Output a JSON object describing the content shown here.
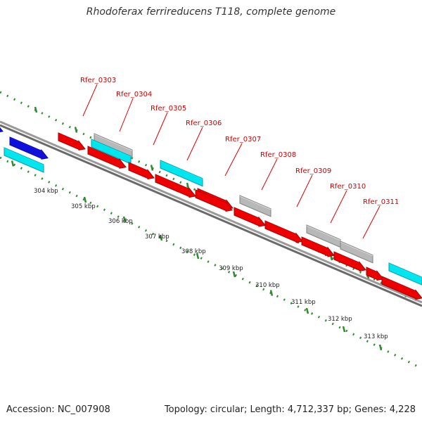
{
  "title": "Rhodoferax ferrireducens T118, complete genome",
  "footer": {
    "accession": "Accession: NC_007908",
    "topology": "Topology: circular; Length: 4,712,337 bp; Genes: 4,228"
  },
  "colors": {
    "cds": "#ee0000",
    "cyan": "#00e5ee",
    "gray": "#b8b8b8",
    "blue": "#1010dd",
    "backbone": "#888888",
    "tick": "#2f8b2f",
    "label_red": "#cc0000",
    "leader": "#dd0000"
  },
  "genes": [
    {
      "label": "Rfer_0303"
    },
    {
      "label": "Rfer_0304"
    },
    {
      "label": "Rfer_0305"
    },
    {
      "label": "Rfer_0306"
    },
    {
      "label": "Rfer_0307"
    },
    {
      "label": "Rfer_0308"
    },
    {
      "label": "Rfer_0309"
    },
    {
      "label": "Rfer_0310"
    },
    {
      "label": "Rfer_0311"
    }
  ],
  "kbp_labels": [
    "304 kbp",
    "305 kbp",
    "306 kbp",
    "307 kbp",
    "308 kbp",
    "309 kbp",
    "310 kbp",
    "311 kbp",
    "312 kbp",
    "313 kbp"
  ]
}
